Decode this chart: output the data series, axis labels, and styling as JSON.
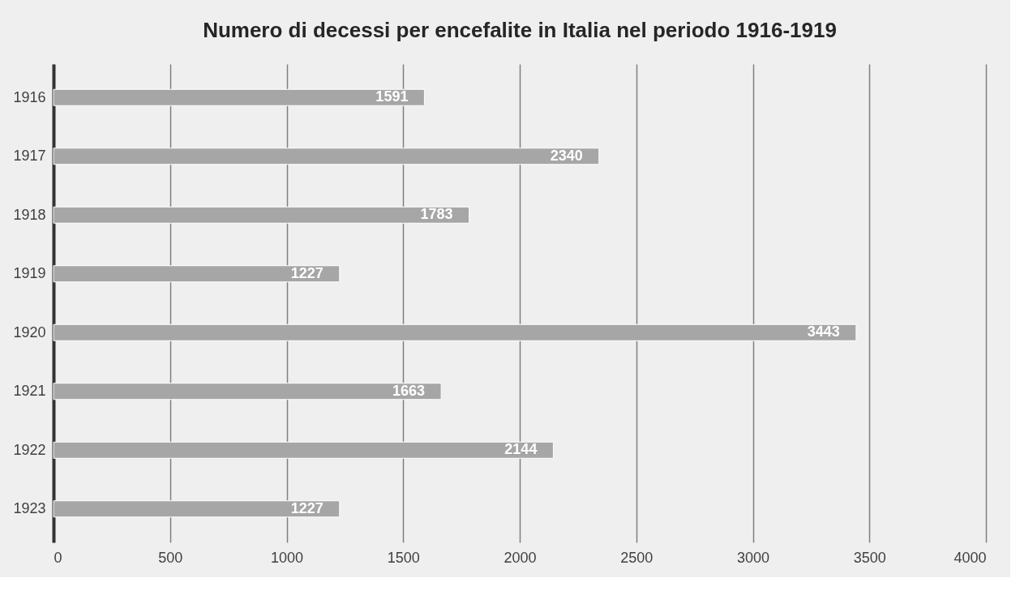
{
  "chart_data": {
    "type": "bar",
    "orientation": "horizontal",
    "title": "Numero di decessi per encefalite in Italia nel periodo 1916-1919",
    "categories": [
      "1916",
      "1917",
      "1918",
      "1919",
      "1920",
      "1921",
      "1922",
      "1923"
    ],
    "values": [
      1591,
      2340,
      1783,
      1227,
      3443,
      1663,
      2144,
      1227
    ],
    "color": "#a6a6a6",
    "xlim": [
      0,
      4000
    ],
    "xticks": [
      0,
      500,
      1000,
      1500,
      2000,
      2500,
      3000,
      3500,
      4000
    ],
    "grid": "x",
    "data_labels": true
  }
}
